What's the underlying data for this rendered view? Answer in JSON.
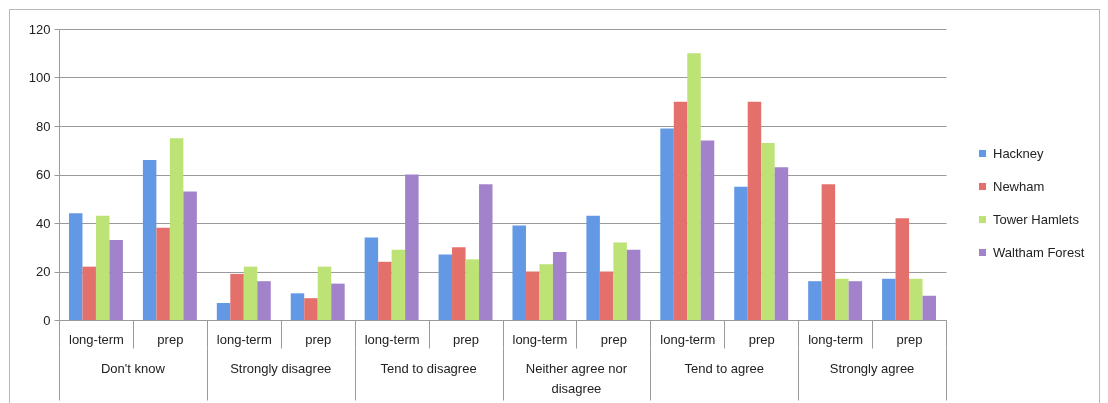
{
  "chart_data": {
    "type": "bar",
    "categories": [
      "long-term",
      "prep",
      "long-term",
      "prep",
      "long-term",
      "prep",
      "long-term",
      "prep",
      "long-term",
      "prep",
      "long-term",
      "prep"
    ],
    "series": [
      {
        "name": "Hackney",
        "color": "#6399e4",
        "values": [
          44,
          66,
          7,
          11,
          34,
          27,
          39,
          43,
          79,
          55,
          16,
          17
        ]
      },
      {
        "name": "Newham",
        "color": "#e4706c",
        "values": [
          22,
          38,
          19,
          9,
          24,
          30,
          20,
          20,
          90,
          90,
          56,
          42
        ]
      },
      {
        "name": "Tower Hamlets",
        "color": "#bde276",
        "values": [
          43,
          75,
          22,
          22,
          29,
          25,
          23,
          32,
          110,
          73,
          17,
          17
        ]
      },
      {
        "name": "Waltham Forest",
        "color": "#a283cb",
        "values": [
          33,
          53,
          16,
          15,
          60,
          56,
          28,
          29,
          74,
          63,
          16,
          10
        ]
      }
    ],
    "ylim": [
      0,
      120
    ],
    "yticks": [
      0,
      20,
      40,
      60,
      80,
      100,
      120
    ],
    "grid": "y",
    "legend": "right",
    "annotations": [
      "Don't know",
      "Strongly disagree",
      "Tend to disagree",
      "Neither agree nor disagree",
      "Tend to agree",
      "Strongly agree"
    ]
  }
}
